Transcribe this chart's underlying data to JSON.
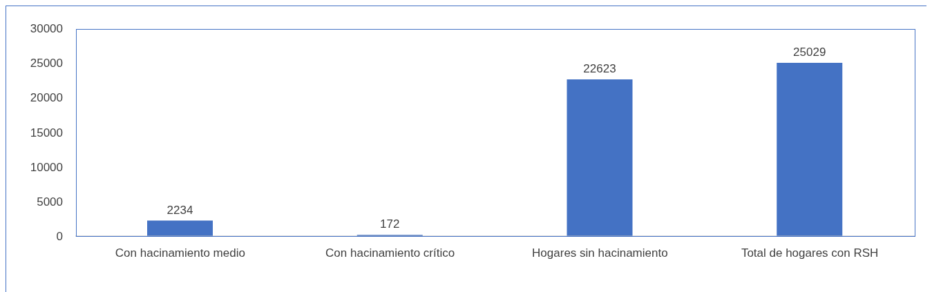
{
  "chart_data": {
    "type": "bar",
    "categories": [
      "Con hacinamiento medio",
      "Con hacinamiento crítico",
      "Hogares sin hacinamiento",
      "Total de hogares con RSH"
    ],
    "values": [
      2234,
      172,
      22623,
      25029
    ],
    "color": "#4472c4",
    "ylim": [
      0,
      30000
    ],
    "yticks": [
      0,
      5000,
      10000,
      15000,
      20000,
      25000,
      30000
    ],
    "grid": false,
    "data_labels": true,
    "legend": false
  }
}
